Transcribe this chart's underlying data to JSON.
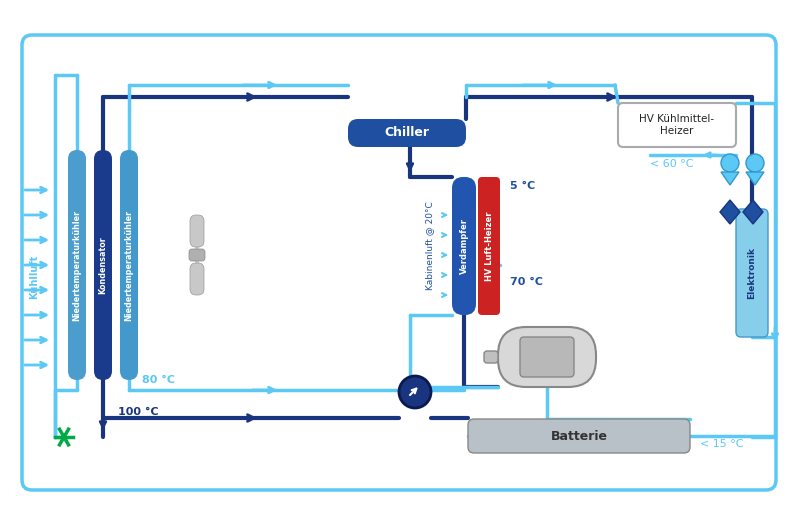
{
  "bg": "#ffffff",
  "lb": "#5bc8f5",
  "mb": "#3399cc",
  "db": "#1e4fa0",
  "nb": "#1a3580",
  "red": "#cc2222",
  "gray": "#b8c0c8",
  "green": "#00aa44",
  "labels": {
    "kuhlluft": "Kühlluft",
    "nt1": "Niedertemperaturkühler",
    "kond": "Kondensator",
    "nt2": "Niedertemperaturkühler",
    "chiller": "Chiller",
    "kabin": "Kabinenluft @ 20°C",
    "verd": "Verdampfer",
    "hvl": "HV Luft-Heizer",
    "hvk": "HV Kühlmittel-\nHeizer",
    "elek": "Elektronik",
    "batt": "Batterie",
    "t5": "5 °C",
    "t70": "70 °C",
    "t80": "80 °C",
    "t100": "100 °C",
    "t60": "< 60 °C",
    "t15": "< 15 °C"
  }
}
